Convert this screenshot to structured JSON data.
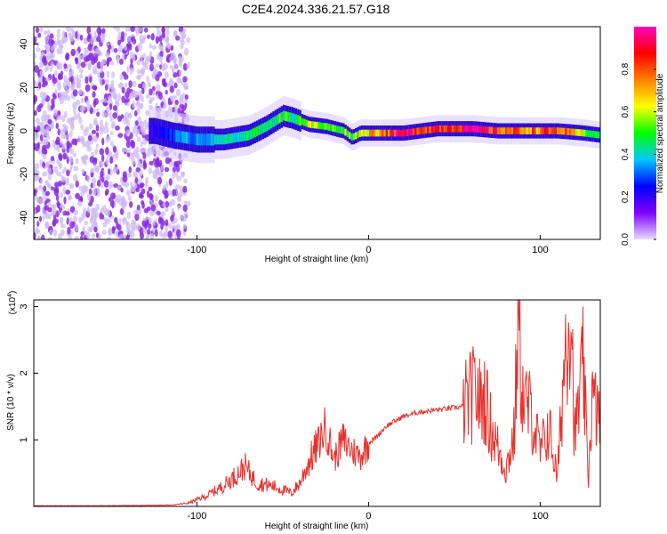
{
  "title": "C2E4.2024.336.21.57.G18",
  "chart_data": [
    {
      "type": "heatmap",
      "xlabel": "Height of straight line (km)",
      "ylabel": "Frequency (Hz)",
      "xlim": [
        -195,
        135
      ],
      "ylim": [
        -50,
        48
      ],
      "x_ticks": [
        -100,
        0,
        100
      ],
      "y_ticks": [
        -40,
        -20,
        0,
        20,
        40
      ],
      "colorbar": {
        "label": "Normalized spectral amplitude",
        "range": [
          0,
          1
        ],
        "ticks": [
          "0.0",
          "0.2",
          "0.4",
          "0.6",
          "0.8"
        ],
        "colors": [
          "#e6dcff",
          "#8000ff",
          "#0000ff",
          "#00c8ff",
          "#00ff00",
          "#ffff00",
          "#ff8000",
          "#ff0000",
          "#ff00c0"
        ]
      },
      "ridge": [
        {
          "x": -125,
          "f": 0,
          "a": 0.2
        },
        {
          "x": -115,
          "f": -2,
          "a": 0.3
        },
        {
          "x": -100,
          "f": -4,
          "a": 0.35
        },
        {
          "x": -85,
          "f": -4,
          "a": 0.4
        },
        {
          "x": -70,
          "f": -2,
          "a": 0.45
        },
        {
          "x": -60,
          "f": 2,
          "a": 0.45
        },
        {
          "x": -50,
          "f": 7,
          "a": 0.5
        },
        {
          "x": -45,
          "f": 6,
          "a": 0.45
        },
        {
          "x": -35,
          "f": 3,
          "a": 0.6
        },
        {
          "x": -25,
          "f": 2,
          "a": 0.5
        },
        {
          "x": -15,
          "f": 0,
          "a": 0.55
        },
        {
          "x": -10,
          "f": -3,
          "a": 0.55
        },
        {
          "x": -5,
          "f": -1,
          "a": 0.6
        },
        {
          "x": 0,
          "f": -1,
          "a": 0.7
        },
        {
          "x": 20,
          "f": -1,
          "a": 0.9
        },
        {
          "x": 40,
          "f": 1,
          "a": 0.85
        },
        {
          "x": 60,
          "f": 1,
          "a": 0.95
        },
        {
          "x": 75,
          "f": 0,
          "a": 0.8
        },
        {
          "x": 90,
          "f": 0,
          "a": 0.75
        },
        {
          "x": 110,
          "f": 0,
          "a": 0.8
        },
        {
          "x": 125,
          "f": -1,
          "a": 0.55
        },
        {
          "x": 135,
          "f": -2,
          "a": 0.45
        }
      ]
    },
    {
      "type": "line",
      "xlabel": "Height of straight line (km)",
      "ylabel": "SNR (10 * v/v)",
      "y_multiplier": "(x10",
      "y_multiplier_exp": "4",
      "xlim": [
        -195,
        135
      ],
      "ylim": [
        0,
        3.1
      ],
      "x_ticks": [
        -100,
        0,
        100
      ],
      "y_ticks": [
        1,
        2,
        3
      ],
      "color": "#e8312d",
      "series": [
        {
          "x": [
            -195,
            -150,
            -115,
            -105,
            -95,
            -85,
            -78,
            -72,
            -65,
            -55,
            -45,
            -40,
            -35,
            -30,
            -25,
            -20,
            -15,
            -10,
            -5,
            0,
            5,
            10,
            20,
            30,
            40,
            50,
            55,
            60,
            63,
            65,
            68,
            70,
            75,
            80,
            85,
            87,
            90,
            95,
            100,
            105,
            110,
            115,
            118,
            120,
            125,
            128,
            130,
            135
          ],
          "y": [
            0.01,
            0.01,
            0.02,
            0.05,
            0.15,
            0.3,
            0.45,
            0.6,
            0.35,
            0.3,
            0.2,
            0.35,
            0.65,
            0.9,
            1.2,
            0.7,
            1.0,
            0.85,
            0.75,
            0.95,
            1.05,
            1.2,
            1.35,
            1.42,
            1.45,
            1.48,
            1.5,
            1.65,
            1.75,
            1.55,
            1.65,
            1.3,
            0.9,
            0.55,
            1.1,
            2.85,
            1.6,
            1.4,
            0.8,
            1.2,
            0.4,
            2.6,
            3.1,
            1.0,
            2.1,
            0.4,
            1.6,
            1.3
          ]
        }
      ]
    }
  ]
}
